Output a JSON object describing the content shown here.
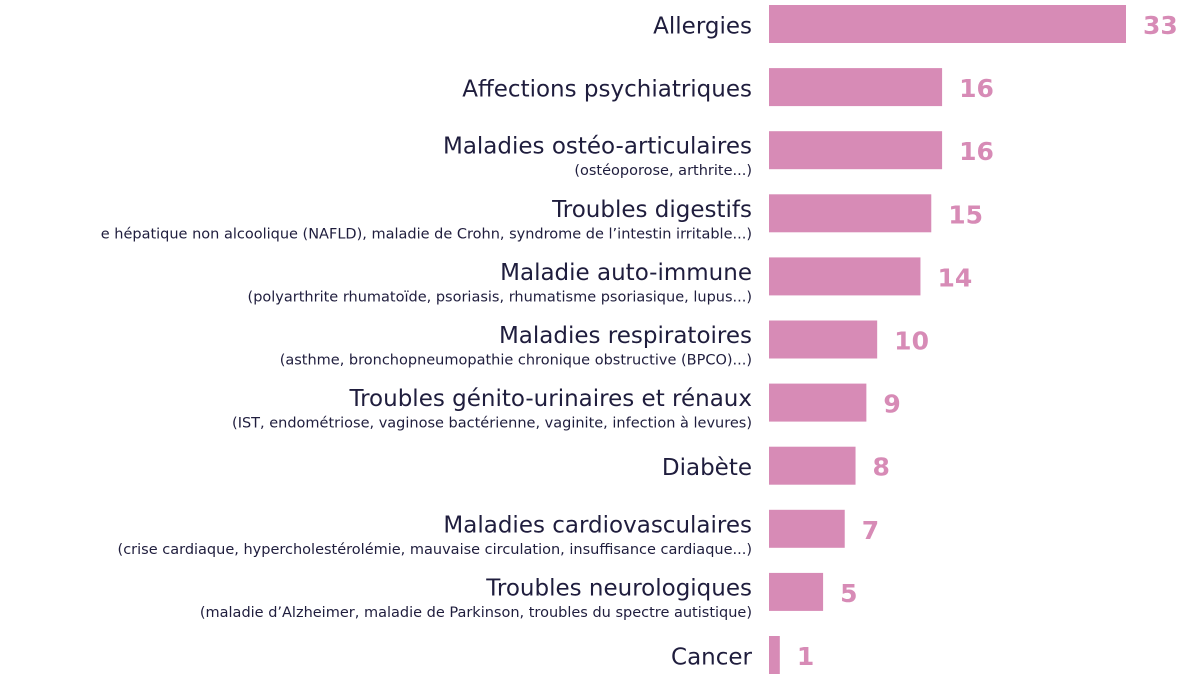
{
  "chart_data": {
    "type": "barh",
    "categories": [
      "Allergies",
      "Affections psychiatriques",
      "Maladies ostéo-articulaires",
      "Troubles digestifs",
      "Maladie auto-immune",
      "Maladies respiratoires",
      "Troubles génito-urinaires et rénaux",
      "Diabète",
      "Maladies cardiovasculaires",
      "Troubles neurologiques",
      "Cancer"
    ],
    "sublabels": [
      null,
      null,
      "(ostéoporose, arthrite...)",
      "e hépatique non alcoolique (NAFLD), maladie de Crohn, syndrome de l’intestin irritable...)",
      "(polyarthrite rhumatoïde, psoriasis, rhumatisme psoriasique, lupus...)",
      "(asthme, bronchopneumopathie chronique obstructive (BPCO)...)",
      "(IST, endométriose, vaginose bactérienne, vaginite, infection à levures)",
      null,
      "(crise cardiaque, hypercholestérolémie, mauvaise circulation, insuffisance cardiaque...)",
      "(maladie d’Alzheimer, maladie de Parkinson, troubles du spectre autistique)",
      null
    ],
    "values": [
      33,
      16,
      16,
      15,
      14,
      10,
      9,
      8,
      7,
      5,
      1
    ],
    "color": "#d78bb6"
  }
}
